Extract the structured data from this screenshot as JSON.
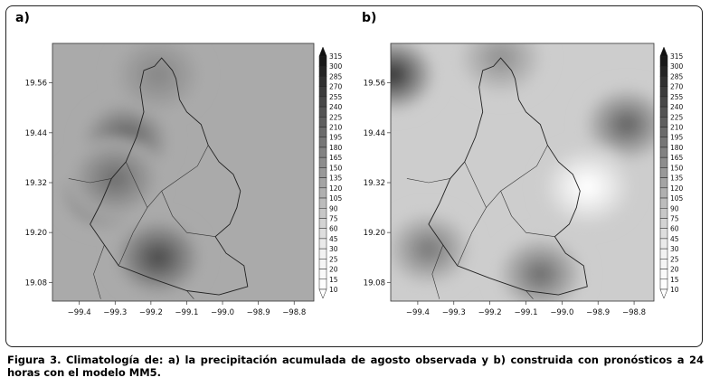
{
  "figure": {
    "panels": [
      {
        "label": "a)"
      },
      {
        "label": "b)"
      }
    ],
    "caption": "Figura 3. Climatología de: a) la precipitación acumulada de agosto observada y b) construida con pronósticos a 24 horas con el modelo MM5."
  },
  "chart_data": [
    {
      "type": "heatmap",
      "panel": "a)",
      "title": "",
      "xlabel": "",
      "ylabel": "",
      "x_ticks": [
        "-99.4",
        "-99.3",
        "-99.2",
        "-99.1",
        "-99.0",
        "-98.9",
        "-98.8"
      ],
      "y_ticks": [
        "19.56",
        "19.44",
        "19.32",
        "19.20",
        "19.08"
      ],
      "colorbar": {
        "levels": [
          10,
          15,
          20,
          25,
          30,
          45,
          60,
          75,
          90,
          105,
          120,
          135,
          150,
          165,
          180,
          195,
          210,
          225,
          240,
          255,
          270,
          285,
          300,
          315
        ],
        "colormap": "grayscale, white=low, black=high"
      },
      "background_level": 120,
      "maxima": [
        {
          "lon": -99.33,
          "lat": 19.3,
          "level": 270
        },
        {
          "lon": -99.27,
          "lat": 19.42,
          "level": 225
        },
        {
          "lon": -99.18,
          "lat": 19.14,
          "level": 240
        },
        {
          "lon": -99.18,
          "lat": 19.58,
          "level": 165
        },
        {
          "lon": -99.3,
          "lat": 19.33,
          "level": 195
        }
      ]
    },
    {
      "type": "heatmap",
      "panel": "b)",
      "title": "",
      "xlabel": "",
      "ylabel": "",
      "x_ticks": [
        "-99.4",
        "-99.3",
        "-99.2",
        "-99.1",
        "-99.0",
        "-98.9",
        "-98.8"
      ],
      "y_ticks": [
        "19.56",
        "19.44",
        "19.32",
        "19.20",
        "19.08"
      ],
      "colorbar": {
        "levels": [
          10,
          15,
          20,
          25,
          30,
          45,
          60,
          75,
          90,
          105,
          120,
          135,
          150,
          165,
          180,
          195,
          210,
          225,
          240,
          255,
          270,
          285,
          300,
          315
        ],
        "colormap": "grayscale, white=low, black=high"
      },
      "background_level": 75,
      "maxima": [
        {
          "lon": -99.47,
          "lat": 19.58,
          "level": 270
        },
        {
          "lon": -99.37,
          "lat": 19.16,
          "level": 180
        },
        {
          "lon": -99.06,
          "lat": 19.1,
          "level": 195
        },
        {
          "lon": -98.82,
          "lat": 19.46,
          "level": 210
        },
        {
          "lon": -99.17,
          "lat": 19.62,
          "level": 150
        }
      ],
      "minima": [
        {
          "lon": -98.93,
          "lat": 19.31,
          "level": 10
        }
      ]
    }
  ]
}
